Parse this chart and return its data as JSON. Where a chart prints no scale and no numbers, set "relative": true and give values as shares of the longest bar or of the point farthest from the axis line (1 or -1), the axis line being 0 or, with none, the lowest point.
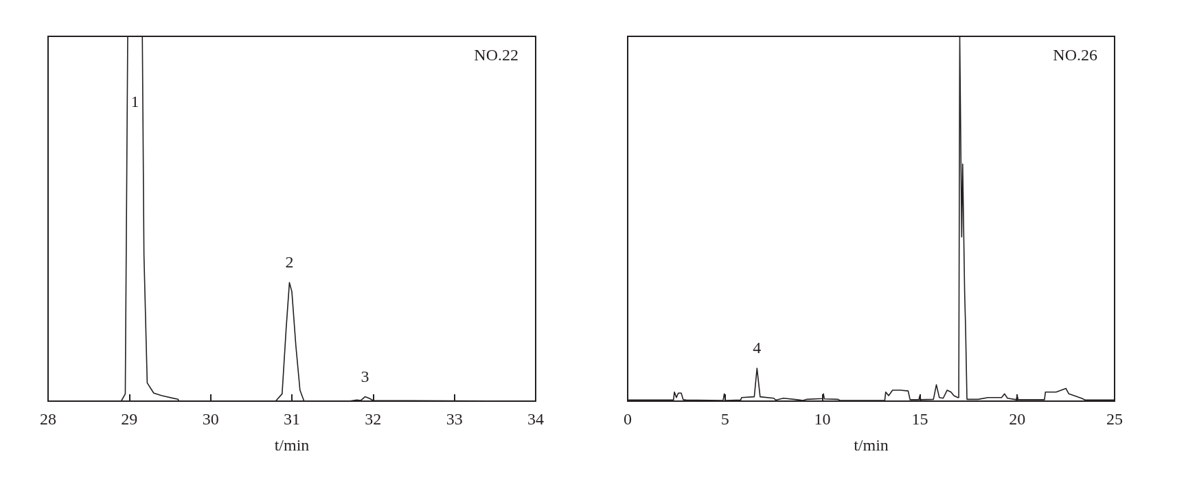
{
  "chart_data": [
    {
      "type": "line",
      "title": "NO.22",
      "xlabel": "t/min",
      "relative": true,
      "xlim": [
        28,
        34
      ],
      "xticks": [
        28,
        29,
        30,
        31,
        32,
        33,
        34
      ],
      "grid": false,
      "marker": "none",
      "line_style": "solid",
      "series": [
        {
          "color": "#231f20",
          "x": [
            28,
            28.9,
            28.95,
            28.98,
            29.16,
            29.18,
            29.22,
            29.3,
            29.4,
            29.6,
            29.61,
            30.8,
            30.88,
            30.93,
            30.97,
            31.0,
            31.05,
            31.1,
            31.15,
            31.7,
            31.8,
            31.85,
            31.9,
            31.95,
            32.0,
            34
          ],
          "values": [
            0,
            0,
            0.02,
            1,
            1,
            0.4,
            0.05,
            0.022,
            0.015,
            0.005,
            0,
            0,
            0.02,
            0.2,
            0.325,
            0.3,
            0.15,
            0.03,
            0,
            0,
            0.003,
            0.002,
            0.012,
            0.008,
            0.002,
            0
          ]
        }
      ],
      "annotations": [
        "1",
        {
          "text": "2",
          "x": 30.97,
          "y": 0.325
        },
        {
          "text": "3",
          "x": 31.9,
          "y": 0.012
        }
      ]
    },
    {
      "type": "line",
      "title": "NO.26",
      "xlabel": "t/min",
      "relative": true,
      "xlim": [
        0,
        25
      ],
      "xticks": [
        0,
        5,
        10,
        15,
        20,
        25
      ],
      "grid": false,
      "marker": "none",
      "line_style": "solid",
      "series": [
        {
          "color": "#231f20",
          "x": [
            0,
            2.35,
            2.4,
            2.5,
            2.6,
            2.75,
            2.85,
            3,
            4.9,
            4.96,
            5.02,
            5.8,
            5.85,
            6.5,
            6.64,
            6.8,
            7.5,
            7.6,
            8,
            8.7,
            9.0,
            9.2,
            10,
            10.05,
            10.1,
            10.8,
            10.9,
            13.2,
            13.25,
            13.4,
            13.6,
            14,
            14.4,
            14.5,
            14.95,
            15.0,
            15.05,
            15.7,
            15.85,
            16.0,
            16.2,
            16.4,
            16.6,
            16.75,
            16.95,
            17.0,
            17.05,
            17.15,
            17.2,
            17.3,
            17.35,
            17.42,
            18,
            18.5,
            19.2,
            19.35,
            19.5,
            19.95,
            20,
            20.05,
            21.4,
            21.45,
            22,
            22.5,
            22.65,
            23.3,
            23.5,
            25
          ],
          "values": [
            0.003,
            0.003,
            0.025,
            0.01,
            0.022,
            0.022,
            0.004,
            0.003,
            0.002,
            0.02,
            0.002,
            0.003,
            0.01,
            0.012,
            0.09,
            0.012,
            0.008,
            0.003,
            0.008,
            0.004,
            0.002,
            0.005,
            0.007,
            0.02,
            0.006,
            0.005,
            0.002,
            0.002,
            0.025,
            0.015,
            0.03,
            0.03,
            0.028,
            0.004,
            0.004,
            0.015,
            0.004,
            0.005,
            0.045,
            0.01,
            0.008,
            0.03,
            0.025,
            0.015,
            0.01,
            0.01,
            1,
            0.45,
            0.65,
            0.3,
            0.2,
            0.005,
            0.005,
            0.01,
            0.01,
            0.02,
            0.008,
            0.004,
            0.015,
            0.004,
            0.004,
            0.025,
            0.025,
            0.035,
            0.02,
            0.008,
            0.003,
            0.003
          ]
        }
      ],
      "annotations": [
        {
          "text": "4",
          "x": 6.64,
          "y": 0.09
        }
      ]
    }
  ]
}
